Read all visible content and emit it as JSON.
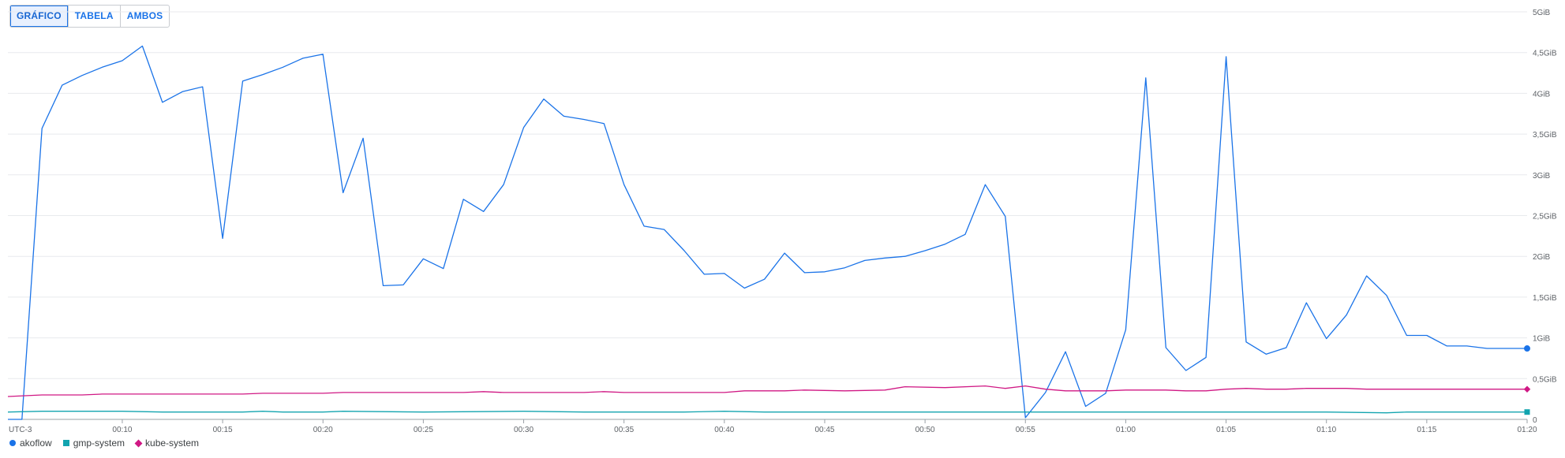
{
  "view_toggle": {
    "buttons": [
      {
        "label": "GRÁFICO",
        "active": true
      },
      {
        "label": "TABELA",
        "active": false
      },
      {
        "label": "AMBOS",
        "active": false
      }
    ]
  },
  "chart_data": {
    "type": "line",
    "timezone_label": "UTC-3",
    "x_tick_labels": [
      "00:10",
      "00:15",
      "00:20",
      "00:25",
      "00:30",
      "00:35",
      "00:40",
      "00:45",
      "00:50",
      "00:55",
      "01:00",
      "01:05",
      "01:10",
      "01:15",
      "01:20"
    ],
    "x_tick_minutes": [
      10,
      15,
      20,
      25,
      30,
      35,
      40,
      45,
      50,
      55,
      60,
      65,
      70,
      75,
      80
    ],
    "x_range_minutes": [
      4.3,
      80
    ],
    "y_unit": "GiB",
    "y_tick_labels": [
      "0",
      "0,5GiB",
      "1GiB",
      "1,5GiB",
      "2GiB",
      "2,5GiB",
      "3GiB",
      "3,5GiB",
      "4GiB",
      "4,5GiB",
      "5GiB"
    ],
    "y_tick_values": [
      0,
      0.5,
      1,
      1.5,
      2,
      2.5,
      3,
      3.5,
      4,
      4.5,
      5
    ],
    "ylim": [
      0,
      5
    ],
    "grid": true,
    "legend_position": "bottom-left",
    "series": [
      {
        "name": "akoflow",
        "color": "#1a73e8",
        "marker": "circle",
        "points": [
          [
            4.3,
            0
          ],
          [
            5,
            0
          ],
          [
            6,
            3.57
          ],
          [
            7,
            4.1
          ],
          [
            8,
            4.22
          ],
          [
            9,
            4.32
          ],
          [
            10,
            4.4
          ],
          [
            11,
            4.58
          ],
          [
            12,
            3.89
          ],
          [
            13,
            4.02
          ],
          [
            14,
            4.08
          ],
          [
            15,
            2.22
          ],
          [
            16,
            4.15
          ],
          [
            17,
            4.23
          ],
          [
            18,
            4.32
          ],
          [
            19,
            4.43
          ],
          [
            20,
            4.48
          ],
          [
            21,
            2.78
          ],
          [
            22,
            3.45
          ],
          [
            23,
            1.64
          ],
          [
            24,
            1.65
          ],
          [
            25,
            1.97
          ],
          [
            26,
            1.85
          ],
          [
            27,
            2.7
          ],
          [
            28,
            2.55
          ],
          [
            29,
            2.88
          ],
          [
            30,
            3.58
          ],
          [
            31,
            3.93
          ],
          [
            32,
            3.72
          ],
          [
            33,
            3.68
          ],
          [
            34,
            3.63
          ],
          [
            35,
            2.88
          ],
          [
            36,
            2.37
          ],
          [
            37,
            2.33
          ],
          [
            38,
            2.07
          ],
          [
            39,
            1.78
          ],
          [
            40,
            1.79
          ],
          [
            41,
            1.61
          ],
          [
            42,
            1.72
          ],
          [
            43,
            2.04
          ],
          [
            44,
            1.8
          ],
          [
            45,
            1.81
          ],
          [
            46,
            1.86
          ],
          [
            47,
            1.95
          ],
          [
            48,
            1.98
          ],
          [
            49,
            2.0
          ],
          [
            50,
            2.07
          ],
          [
            51,
            2.15
          ],
          [
            52,
            2.27
          ],
          [
            53,
            2.88
          ],
          [
            54,
            2.49
          ],
          [
            55,
            0.02
          ],
          [
            56,
            0.33
          ],
          [
            57,
            0.83
          ],
          [
            58,
            0.16
          ],
          [
            59,
            0.32
          ],
          [
            60,
            1.1
          ],
          [
            61,
            4.19
          ],
          [
            62,
            0.88
          ],
          [
            63,
            0.6
          ],
          [
            64,
            0.76
          ],
          [
            65,
            4.45
          ],
          [
            66,
            0.95
          ],
          [
            67,
            0.8
          ],
          [
            68,
            0.88
          ],
          [
            69,
            1.43
          ],
          [
            70,
            0.99
          ],
          [
            71,
            1.28
          ],
          [
            72,
            1.76
          ],
          [
            73,
            1.52
          ],
          [
            74,
            1.03
          ],
          [
            75,
            1.03
          ],
          [
            76,
            0.9
          ],
          [
            77,
            0.9
          ],
          [
            78,
            0.87
          ],
          [
            79,
            0.87
          ],
          [
            80,
            0.87
          ]
        ]
      },
      {
        "name": "gmp-system",
        "color": "#12a4af",
        "marker": "square",
        "points": [
          [
            4.3,
            0.09
          ],
          [
            6,
            0.1
          ],
          [
            10,
            0.1
          ],
          [
            12,
            0.09
          ],
          [
            16,
            0.09
          ],
          [
            17,
            0.1
          ],
          [
            18,
            0.09
          ],
          [
            20,
            0.09
          ],
          [
            21,
            0.1
          ],
          [
            25,
            0.09
          ],
          [
            30,
            0.1
          ],
          [
            33,
            0.09
          ],
          [
            38,
            0.09
          ],
          [
            40,
            0.1
          ],
          [
            42,
            0.09
          ],
          [
            45,
            0.09
          ],
          [
            50,
            0.09
          ],
          [
            55,
            0.09
          ],
          [
            60,
            0.09
          ],
          [
            65,
            0.09
          ],
          [
            70,
            0.09
          ],
          [
            73,
            0.08
          ],
          [
            74,
            0.09
          ],
          [
            80,
            0.09
          ]
        ]
      },
      {
        "name": "kube-system",
        "color": "#d01884",
        "marker": "diamond",
        "points": [
          [
            4.3,
            0.28
          ],
          [
            6,
            0.3
          ],
          [
            8,
            0.3
          ],
          [
            9,
            0.31
          ],
          [
            16,
            0.31
          ],
          [
            17,
            0.32
          ],
          [
            20,
            0.32
          ],
          [
            21,
            0.33
          ],
          [
            27,
            0.33
          ],
          [
            28,
            0.34
          ],
          [
            29,
            0.33
          ],
          [
            33,
            0.33
          ],
          [
            34,
            0.34
          ],
          [
            35,
            0.33
          ],
          [
            40,
            0.33
          ],
          [
            41,
            0.35
          ],
          [
            43,
            0.35
          ],
          [
            44,
            0.36
          ],
          [
            46,
            0.35
          ],
          [
            48,
            0.36
          ],
          [
            49,
            0.4
          ],
          [
            51,
            0.39
          ],
          [
            53,
            0.41
          ],
          [
            54,
            0.38
          ],
          [
            55,
            0.41
          ],
          [
            56,
            0.37
          ],
          [
            57,
            0.35
          ],
          [
            59,
            0.35
          ],
          [
            60,
            0.36
          ],
          [
            62,
            0.36
          ],
          [
            63,
            0.35
          ],
          [
            64,
            0.35
          ],
          [
            65,
            0.37
          ],
          [
            66,
            0.38
          ],
          [
            67,
            0.37
          ],
          [
            68,
            0.37
          ],
          [
            69,
            0.38
          ],
          [
            71,
            0.38
          ],
          [
            72,
            0.37
          ],
          [
            80,
            0.37
          ]
        ]
      }
    ]
  }
}
